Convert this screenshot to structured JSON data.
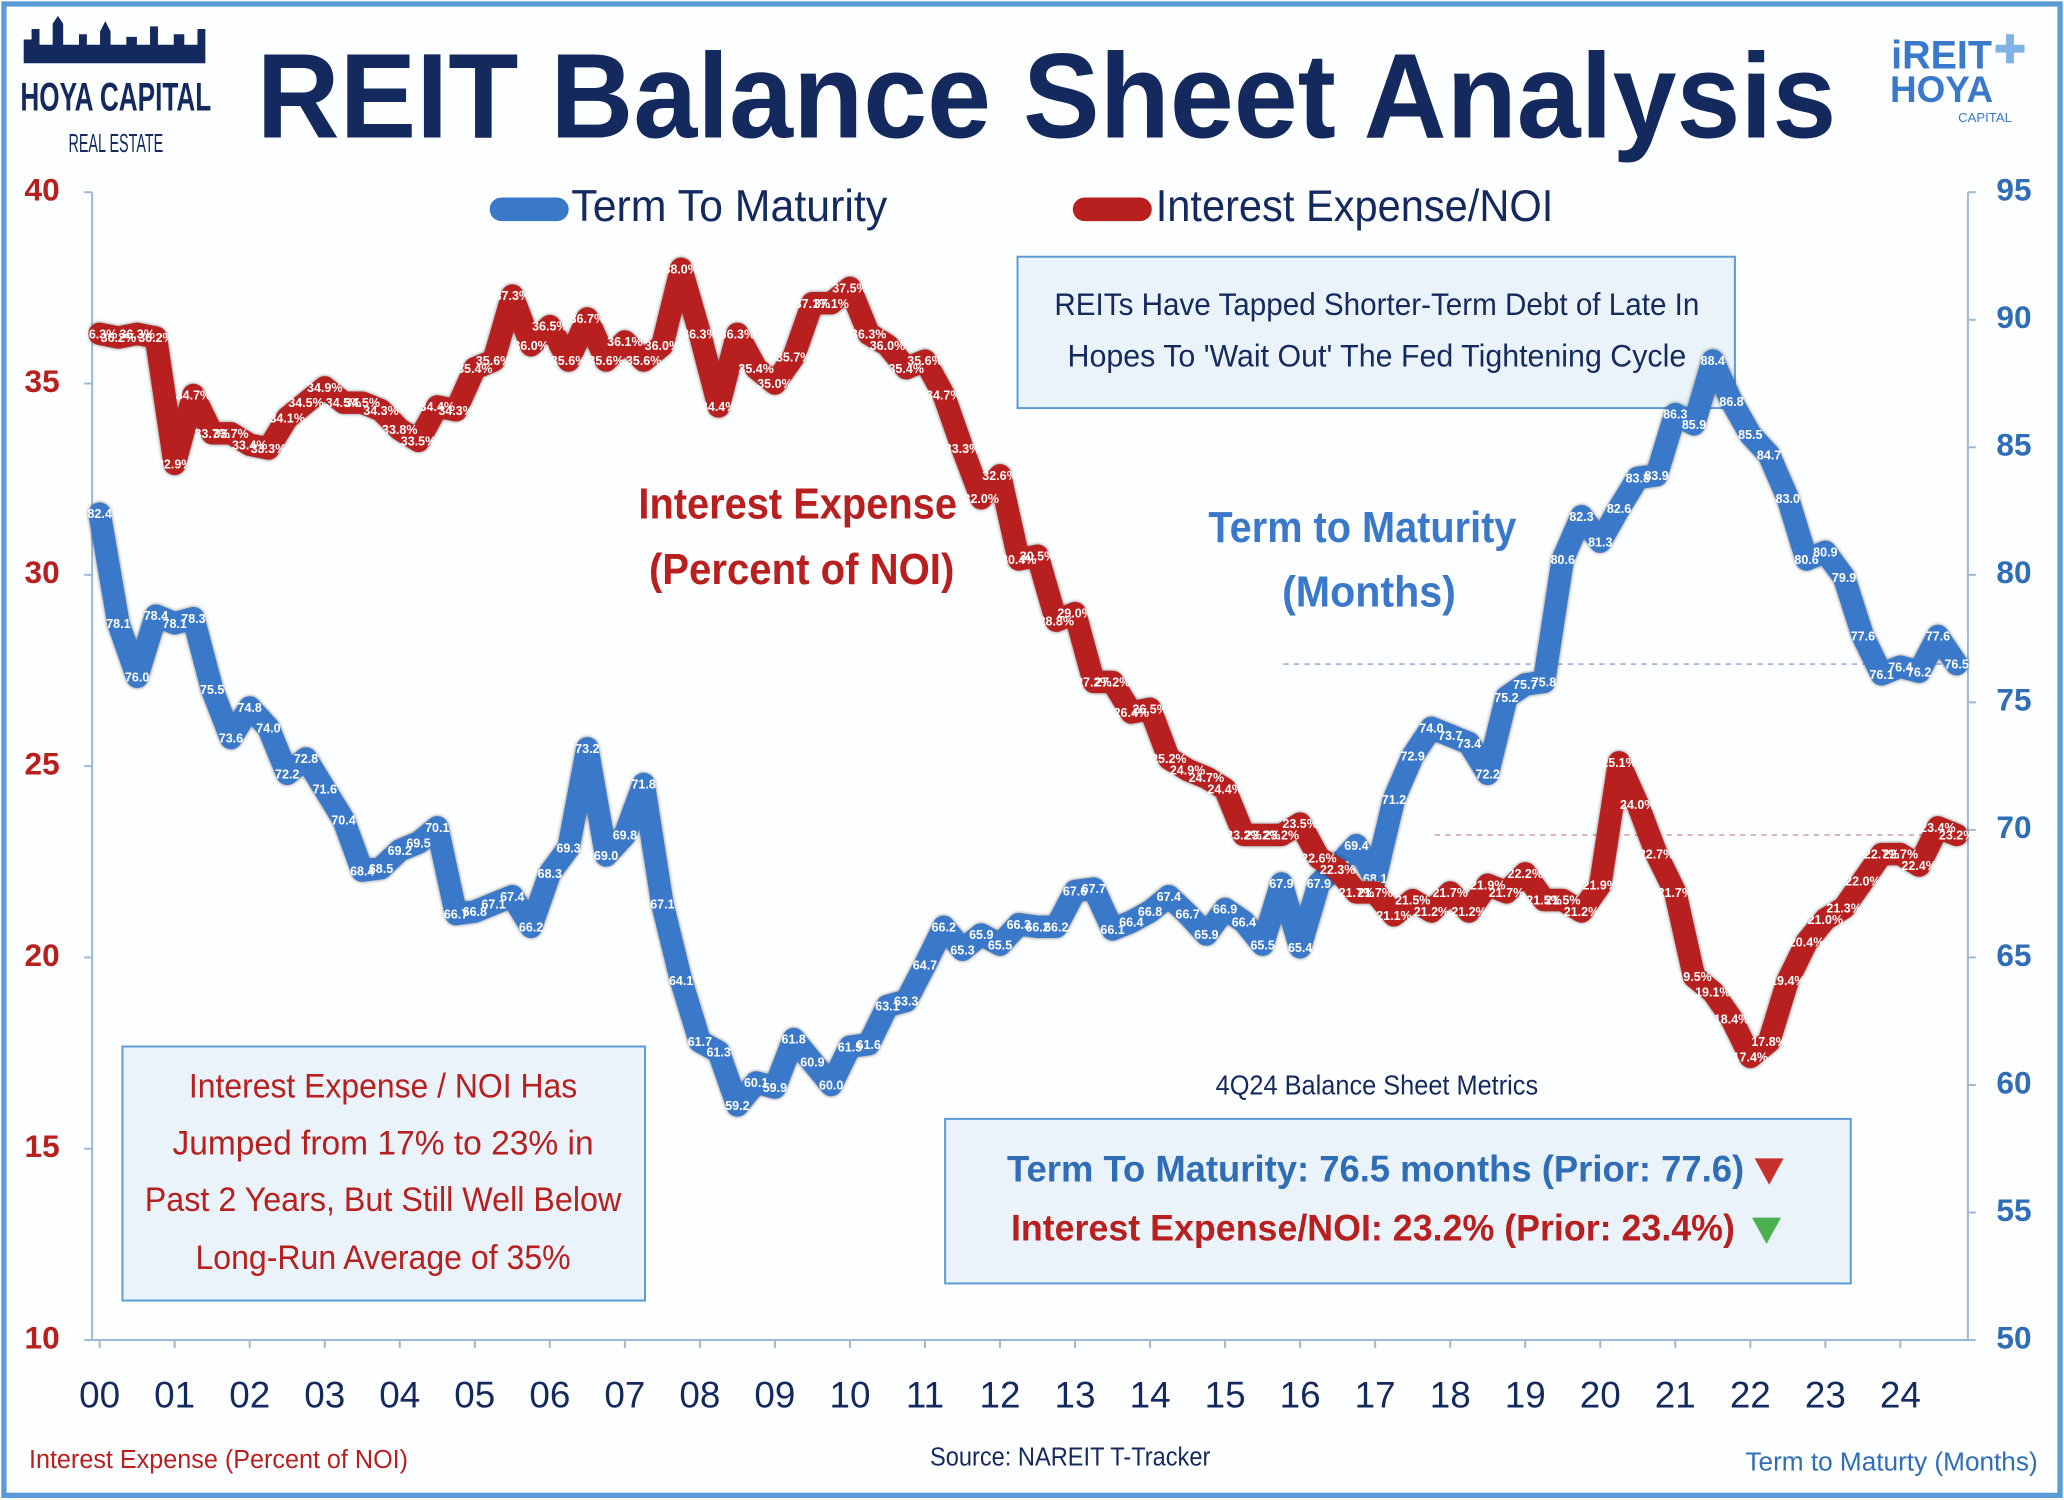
{
  "chart_data": {
    "type": "line",
    "title": "REIT Balance Sheet Analysis",
    "logo_left": [
      "HOYA CAPITAL",
      "REAL ESTATE"
    ],
    "logo_right": [
      "iREIT",
      "HOYA",
      "CAPITAL"
    ],
    "y_label": "Interest Expense (Percent of NOI)",
    "y2_label": "Term to Maturty (Months)",
    "source": "Source: NAREIT T-Tracker",
    "x": [
      2000,
      2000.25,
      2000.5,
      2000.75,
      2001,
      2001.25,
      2001.5,
      2001.75,
      2002,
      2002.25,
      2002.5,
      2002.75,
      2003,
      2003.25,
      2003.5,
      2003.75,
      2004,
      2004.25,
      2004.5,
      2004.75,
      2005,
      2005.25,
      2005.5,
      2005.75,
      2006,
      2006.25,
      2006.5,
      2006.75,
      2007,
      2007.25,
      2007.5,
      2007.75,
      2008,
      2008.25,
      2008.5,
      2008.75,
      2009,
      2009.25,
      2009.5,
      2009.75,
      2010,
      2010.25,
      2010.5,
      2010.75,
      2011,
      2011.25,
      2011.5,
      2011.75,
      2012,
      2012.25,
      2012.5,
      2012.75,
      2013,
      2013.25,
      2013.5,
      2013.75,
      2014,
      2014.25,
      2014.5,
      2014.75,
      2015,
      2015.25,
      2015.5,
      2015.75,
      2016,
      2016.25,
      2016.5,
      2016.75,
      2017,
      2017.25,
      2017.5,
      2017.75,
      2018,
      2018.25,
      2018.5,
      2018.75,
      2019,
      2019.25,
      2019.5,
      2019.75,
      2020,
      2020.25,
      2020.5,
      2020.75,
      2021,
      2021.25,
      2021.5,
      2021.75,
      2022,
      2022.25,
      2022.5,
      2022.75,
      2023,
      2023.25,
      2023.5,
      2023.75,
      2024,
      2024.25,
      2024.5,
      2024.75
    ],
    "xlim": [
      1999.9,
      2024.9
    ],
    "xticks": [
      {
        "value": 2000,
        "label": "00"
      },
      {
        "value": 2001,
        "label": "01"
      },
      {
        "value": 2002,
        "label": "02"
      },
      {
        "value": 2003,
        "label": "03"
      },
      {
        "value": 2004,
        "label": "04"
      },
      {
        "value": 2005,
        "label": "05"
      },
      {
        "value": 2006,
        "label": "06"
      },
      {
        "value": 2007,
        "label": "07"
      },
      {
        "value": 2008,
        "label": "08"
      },
      {
        "value": 2009,
        "label": "09"
      },
      {
        "value": 2010,
        "label": "10"
      },
      {
        "value": 2011,
        "label": "11"
      },
      {
        "value": 2012,
        "label": "12"
      },
      {
        "value": 2013,
        "label": "13"
      },
      {
        "value": 2014,
        "label": "14"
      },
      {
        "value": 2015,
        "label": "15"
      },
      {
        "value": 2016,
        "label": "16"
      },
      {
        "value": 2017,
        "label": "17"
      },
      {
        "value": 2018,
        "label": "18"
      },
      {
        "value": 2019,
        "label": "19"
      },
      {
        "value": 2020,
        "label": "20"
      },
      {
        "value": 2021,
        "label": "21"
      },
      {
        "value": 2022,
        "label": "22"
      },
      {
        "value": 2023,
        "label": "23"
      },
      {
        "value": 2024,
        "label": "24"
      }
    ],
    "ylim": [
      10,
      40
    ],
    "yticks": [
      10,
      15,
      20,
      25,
      30,
      35,
      40
    ],
    "y2lim": [
      50,
      95
    ],
    "y2ticks": [
      50,
      55,
      60,
      65,
      70,
      75,
      80,
      85,
      90,
      95
    ],
    "series": [
      {
        "name": "Term To Maturity",
        "color": "#3a78c9",
        "axis": "y2",
        "values": [
          82.4,
          78.1,
          76.0,
          78.4,
          78.1,
          78.3,
          75.5,
          73.6,
          74.8,
          74.0,
          72.2,
          72.8,
          71.6,
          70.4,
          68.4,
          68.5,
          69.2,
          69.5,
          70.1,
          66.7,
          66.8,
          67.1,
          67.4,
          66.2,
          68.3,
          69.3,
          73.2,
          69.0,
          69.8,
          71.8,
          67.1,
          64.1,
          61.7,
          61.3,
          59.2,
          60.1,
          59.9,
          61.8,
          60.9,
          60.0,
          61.5,
          61.6,
          63.1,
          63.3,
          64.7,
          66.2,
          65.3,
          65.9,
          65.5,
          66.3,
          66.2,
          66.2,
          67.6,
          67.7,
          66.1,
          66.4,
          66.8,
          67.4,
          66.7,
          65.9,
          66.9,
          66.4,
          65.5,
          67.9,
          65.4,
          67.9,
          68.6,
          69.4,
          68.1,
          71.2,
          72.9,
          74.0,
          73.7,
          73.4,
          72.2,
          75.2,
          75.7,
          75.8,
          80.6,
          82.3,
          81.3,
          82.6,
          83.8,
          83.9,
          86.3,
          85.9,
          88.4,
          86.8,
          85.5,
          84.7,
          83.0,
          80.6,
          80.9,
          79.9,
          77.6,
          76.1,
          76.4,
          76.2,
          77.6,
          76.5
        ],
        "value_labels": [
          "82.4",
          "78.1",
          "76.0",
          "78.4",
          "78.1",
          "78.3",
          "75.5",
          "73.6",
          "74.8",
          "74.0",
          "72.2",
          "72.8",
          "71.6",
          "70.4",
          "68.4",
          "68.5",
          "69.2",
          "69.5",
          "70.1",
          "66.7",
          "66.8",
          "67.1",
          "67.4",
          "66.2",
          "68.3",
          "69.3",
          "73.2",
          "69.0",
          "69.8",
          "71.8",
          "67.1",
          "64.1",
          "61.7",
          "61.3",
          "59.2",
          "60.1",
          "59.9",
          "61.8",
          "60.9",
          "60.0",
          "61.5",
          "61.6",
          "63.1",
          "63.3",
          "64.7",
          "66.2",
          "65.3",
          "65.9",
          "65.5",
          "66.3",
          "66.2",
          "66.2",
          "67.6",
          "67.7",
          "66.1",
          "66.4",
          "66.8",
          "67.4",
          "66.7",
          "65.9",
          "66.9",
          "66.4",
          "65.5",
          "67.9",
          "65.4",
          "67.9",
          "68.6",
          "69.4",
          "68.1",
          "71.2",
          "72.9",
          "74.0",
          "73.7",
          "73.4",
          "72.2",
          "75.2",
          "75.7",
          "75.8",
          "80.6",
          "82.3",
          "81.3",
          "82.6",
          "83.8",
          "83.9",
          "86.3",
          "85.9",
          "88.4",
          "86.8",
          "85.5",
          "84.7",
          "83.0",
          "80.6",
          "80.9",
          "79.9",
          "77.6",
          "76.1",
          "76.4",
          "76.2",
          "77.6",
          "76.5"
        ]
      },
      {
        "name": "Interest Expense/NOI",
        "color": "#b8201f",
        "values": [
          36.3,
          36.2,
          36.3,
          36.2,
          32.9,
          34.7,
          33.7,
          33.7,
          33.4,
          33.3,
          34.1,
          34.5,
          34.9,
          34.5,
          34.5,
          34.3,
          33.8,
          33.5,
          34.4,
          34.3,
          35.4,
          35.6,
          37.3,
          36.0,
          36.5,
          35.6,
          36.7,
          35.6,
          36.1,
          35.6,
          36.0,
          38.0,
          36.3,
          34.4,
          36.3,
          35.4,
          35.0,
          35.7,
          37.1,
          37.1,
          37.5,
          36.3,
          36.0,
          35.4,
          35.6,
          34.7,
          33.3,
          32.0,
          32.6,
          30.4,
          30.5,
          28.8,
          29.0,
          27.2,
          27.2,
          26.4,
          26.5,
          25.2,
          24.9,
          24.7,
          24.4,
          23.2,
          23.2,
          23.2,
          23.5,
          22.6,
          22.3,
          21.7,
          21.7,
          21.1,
          21.5,
          21.2,
          21.7,
          21.2,
          21.9,
          21.7,
          22.2,
          21.5,
          21.5,
          21.2,
          21.9,
          25.1,
          24.0,
          22.7,
          21.7,
          19.5,
          19.1,
          18.4,
          17.4,
          17.8,
          19.4,
          20.4,
          21.0,
          21.3,
          22.0,
          22.7,
          22.7,
          22.4,
          23.4,
          23.2
        ],
        "value_labels": [
          "36.3%",
          "36.2%",
          "36.3%",
          "36.2%",
          "32.9%",
          "34.7%",
          "33.7%",
          "33.7%",
          "33.4%",
          "33.3%",
          "34.1%",
          "34.5%",
          "34.9%",
          "34.5%",
          "34.5%",
          "34.3%",
          "33.8%",
          "33.5%",
          "34.4%",
          "34.3%",
          "35.4%",
          "35.6%",
          "37.3%",
          "36.0%",
          "36.5%",
          "35.6%",
          "36.7%",
          "35.6%",
          "36.1%",
          "35.6%",
          "36.0%",
          "38.0%",
          "36.3%",
          "34.4%",
          "36.3%",
          "35.4%",
          "35.0%",
          "35.7%",
          "37.1%",
          "37.1%",
          "37.5%",
          "36.3%",
          "36.0%",
          "35.4%",
          "35.6%",
          "34.7%",
          "33.3%",
          "32.0%",
          "32.6%",
          "30.4%",
          "30.5%",
          "28.8%",
          "29.0%",
          "27.2%",
          "27.2%",
          "26.4%",
          "26.5%",
          "25.2%",
          "24.9%",
          "24.7%",
          "24.4%",
          "23.2%",
          "23.2%",
          "23.2%",
          "23.5%",
          "22.6%",
          "22.3%",
          "21.7%",
          "21.7%",
          "21.1%",
          "21.5%",
          "21.2%",
          "21.7%",
          "21.2%",
          "21.9%",
          "21.7%",
          "22.2%",
          "21.5%",
          "21.5%",
          "21.2%",
          "21.9%",
          "25.1%",
          "24.0%",
          "22.7%",
          "21.7%",
          "19.5%",
          "19.1%",
          "18.4%",
          "17.4%",
          "17.8%",
          "19.4%",
          "20.4%",
          "21.0%",
          "21.3%",
          "22.0%",
          "22.7%",
          "22.7%",
          "22.4%",
          "23.4%",
          "23.2%"
        ]
      }
    ],
    "annotations": [
      {
        "lines": [
          "Interest Expense",
          "(Percent of NOI)"
        ]
      },
      {
        "lines": [
          "Term to Maturity",
          "(Months)"
        ]
      },
      {
        "lines": [
          "REITs Have Tapped Shorter-Term Debt of Late In",
          "Hopes To 'Wait Out' The Fed Tightening Cycle"
        ]
      },
      {
        "lines": [
          "Interest Expense / NOI Has",
          "Jumped from 17% to 23% in",
          "Past 2 Years, But Still Well Below",
          "Long-Run Average of 35%"
        ]
      },
      {
        "title": "4Q24 Balance Sheet Metrics",
        "lines": [
          "Term To Maturity: 76.5 months (Prior: 77.6)",
          "Interest Expense/NOI: 23.2% (Prior: 23.4%)"
        ]
      }
    ]
  }
}
